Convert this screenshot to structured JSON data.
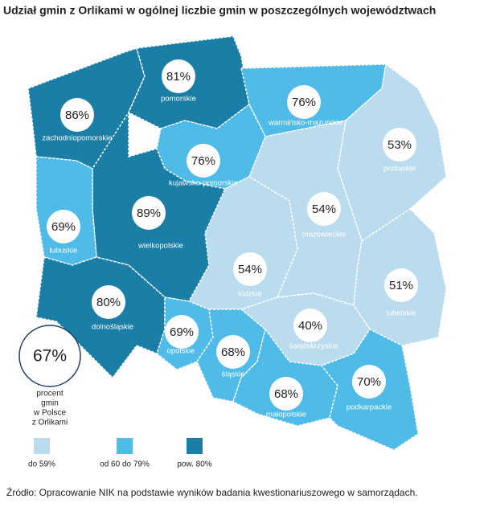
{
  "title": "Udział gmin z Orlikami w ogólnej liczbie gmin w poszczególnych województwach",
  "regions": [
    {
      "name": "zachodniopomorskie",
      "value": 86,
      "value_label": "86%",
      "color": "#1b7ea6"
    },
    {
      "name": "pomorskie",
      "value": 81,
      "value_label": "81%",
      "color": "#1b7ea6"
    },
    {
      "name": "warmińsko-mazurskie",
      "value": 76,
      "value_label": "76%",
      "color": "#4fbbe9"
    },
    {
      "name": "podlaskie",
      "value": 53,
      "value_label": "53%",
      "color": "#badcee"
    },
    {
      "name": "kujawsko-pomorskie",
      "value": 76,
      "value_label": "76%",
      "color": "#4fbbe9"
    },
    {
      "name": "mazowieckie",
      "value": 54,
      "value_label": "54%",
      "color": "#badcee"
    },
    {
      "name": "wielkopolskie",
      "value": 89,
      "value_label": "89%",
      "color": "#1b7ea6"
    },
    {
      "name": "lubuskie",
      "value": 69,
      "value_label": "69%",
      "color": "#4fbbe9"
    },
    {
      "name": "łódzkie",
      "value": 54,
      "value_label": "54%",
      "color": "#badcee"
    },
    {
      "name": "lubelskie",
      "value": 51,
      "value_label": "51%",
      "color": "#badcee"
    },
    {
      "name": "dolnośląskie",
      "value": 80,
      "value_label": "80%",
      "color": "#1b7ea6"
    },
    {
      "name": "świętokrzyskie",
      "value": 40,
      "value_label": "40%",
      "color": "#badcee"
    },
    {
      "name": "opolskie",
      "value": 69,
      "value_label": "69%",
      "color": "#4fbbe9"
    },
    {
      "name": "śląskie",
      "value": 68,
      "value_label": "68%",
      "color": "#4fbbe9"
    },
    {
      "name": "małopolskie",
      "value": 68,
      "value_label": "68%",
      "color": "#4fbbe9"
    },
    {
      "name": "podkarpackie",
      "value": 70,
      "value_label": "70%",
      "color": "#4fbbe9"
    }
  ],
  "summary": {
    "value": 67,
    "value_label": "67%",
    "caption": [
      "procent",
      "gmin",
      "w Polsce",
      "z Orlikami"
    ]
  },
  "legend": [
    {
      "label": "do 59%",
      "color": "#badcee"
    },
    {
      "label": "od 60 do 79%",
      "color": "#4fbbe9"
    },
    {
      "label": "pow. 80%",
      "color": "#1b7ea6"
    }
  ],
  "source": "Źródło:  Opracowanie  NIK na podstawie  wyników  badania  kwestionariuszowego   w samorządach."
}
